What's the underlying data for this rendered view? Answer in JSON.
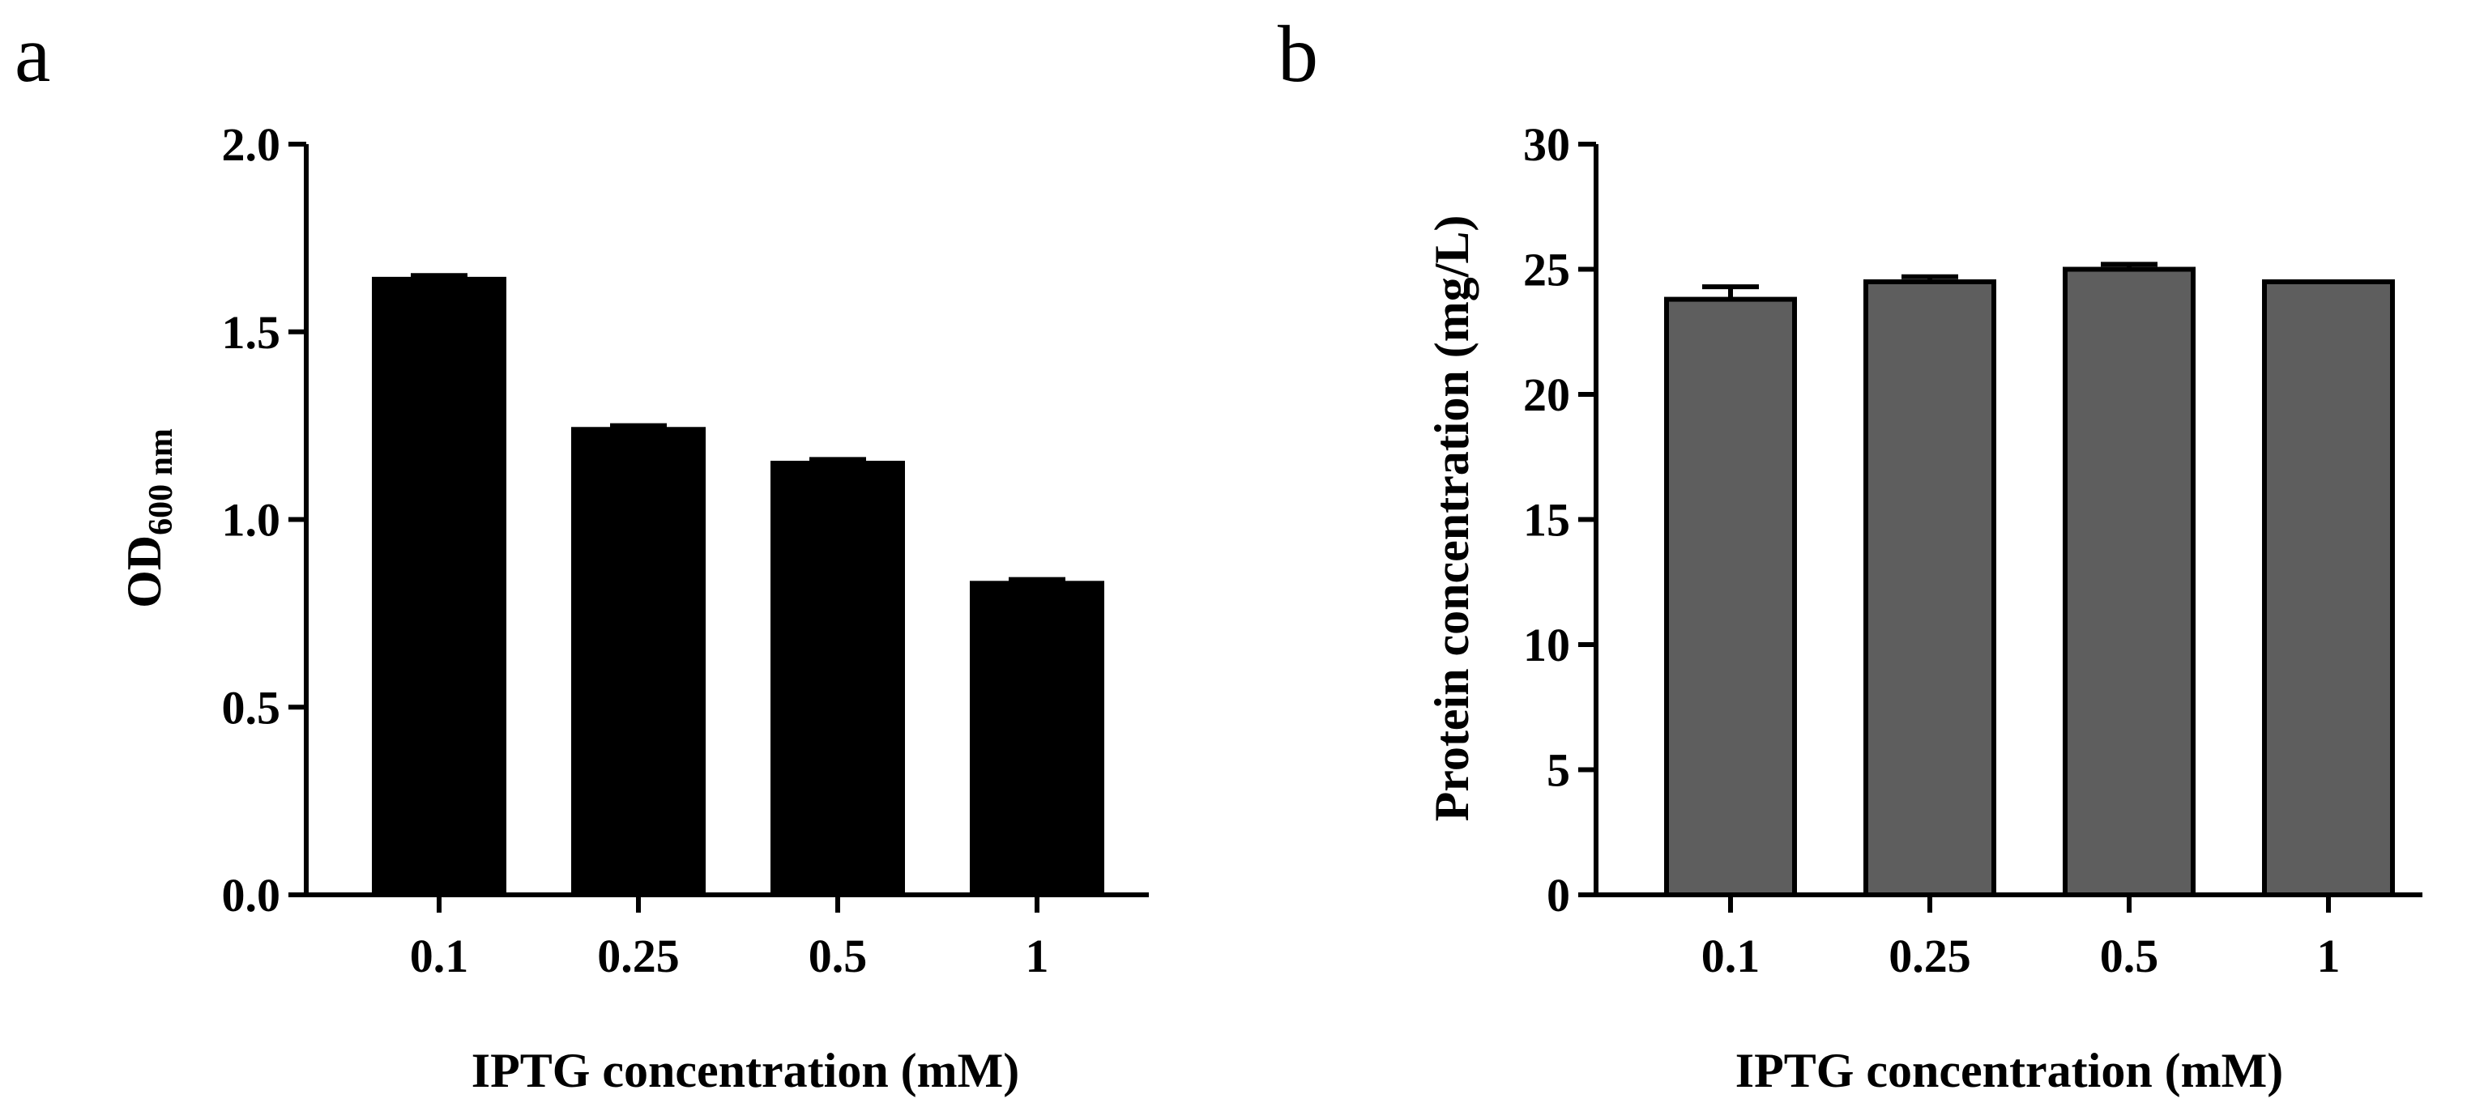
{
  "chart_data": [
    {
      "panel_label": "a",
      "type": "bar",
      "categories": [
        "0.1",
        "0.25",
        "0.5",
        "1"
      ],
      "values": [
        1.64,
        1.24,
        1.15,
        0.83
      ],
      "errors": [
        0.01,
        0.01,
        0.01,
        0.01
      ],
      "xlabel": "IPTG concentration (mM)",
      "ylabel_main": "OD",
      "ylabel_sub": "600 nm",
      "ylim": [
        0,
        2.0
      ],
      "yticks": [
        "0.0",
        "0.5",
        "1.0",
        "1.5",
        "2.0"
      ],
      "bar_color": "#000000",
      "grid": false
    },
    {
      "panel_label": "b",
      "type": "bar",
      "categories": [
        "0.1",
        "0.25",
        "0.5",
        "1"
      ],
      "values": [
        23.8,
        24.5,
        25.0,
        24.5
      ],
      "errors": [
        0.5,
        0.2,
        0.2,
        0.0
      ],
      "xlabel": "IPTG concentration (mM)",
      "ylabel": "Protein concentration (mg/L)",
      "ylim": [
        0,
        30
      ],
      "yticks": [
        "0",
        "5",
        "10",
        "15",
        "20",
        "25",
        "30"
      ],
      "bar_color": "#5e5e5e",
      "grid": false
    }
  ]
}
